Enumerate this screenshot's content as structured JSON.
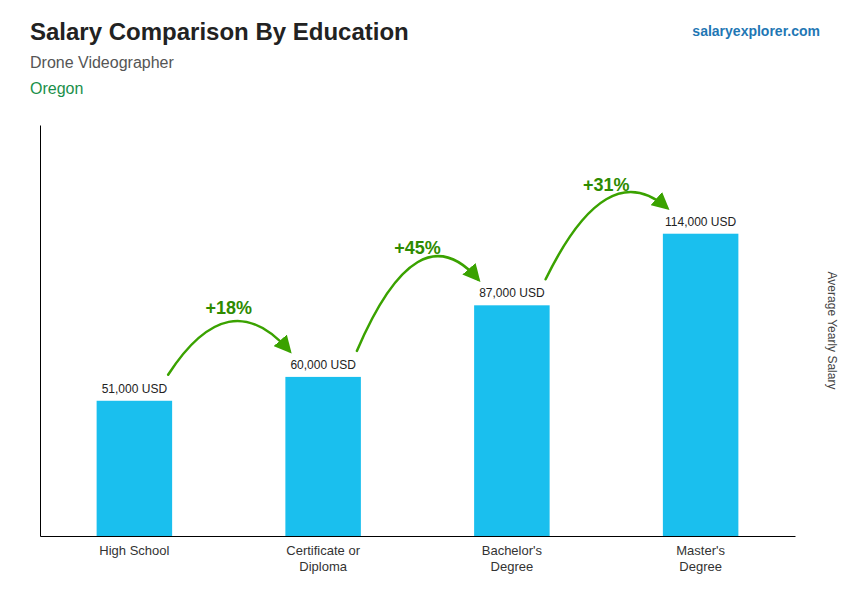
{
  "chart_data": {
    "type": "bar",
    "title": "Salary Comparison By Education",
    "subtitle": "Drone Videographer",
    "ylabel": "Average Yearly Salary",
    "categories": [
      "High School",
      "Certificate or\nDiploma",
      "Bachelor's\nDegree",
      "Master's\nDegree"
    ],
    "values": [
      51000,
      60000,
      87000,
      114000
    ],
    "value_labels": [
      "51,000 USD",
      "60,000 USD",
      "87,000 USD",
      "114,000 USD"
    ],
    "data_labels": true,
    "color": "#1ABFEE",
    "ylim": [
      0,
      155000
    ],
    "tick_labels": "x",
    "grid": false,
    "annotations": [
      {
        "text": "Oregon"
      },
      {
        "text": "salaryexplorer.com"
      },
      {
        "text": "+18%",
        "x": [
          "High School",
          "Certificate or\nDiploma"
        ]
      },
      {
        "text": "+45%",
        "x": [
          "Certificate or\nDiploma",
          "Bachelor's\nDegree"
        ]
      },
      {
        "text": "+31%",
        "x": [
          "Bachelor's\nDegree",
          "Master's\nDegree"
        ]
      }
    ]
  }
}
